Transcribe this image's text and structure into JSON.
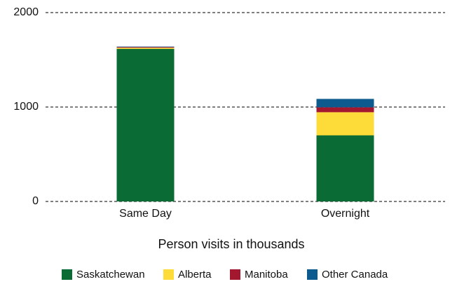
{
  "chart_data": {
    "type": "stacked_bar",
    "xlabel": "Person visits in thousands",
    "categories": [
      "Same Day",
      "Overnight"
    ],
    "series": [
      {
        "name": "Saskatchewan",
        "color": "#0a6b35",
        "values": [
          1615,
          700
        ]
      },
      {
        "name": "Alberta",
        "color": "#fddc3a",
        "values": [
          12,
          245
        ]
      },
      {
        "name": "Manitoba",
        "color": "#a3172f",
        "values": [
          8,
          52
        ]
      },
      {
        "name": "Other Canada",
        "color": "#0c5a8e",
        "values": [
          5,
          89
        ]
      }
    ],
    "ylim": [
      0,
      2000
    ],
    "yticks": [
      0,
      1000,
      2000
    ],
    "grid": true,
    "legend": "bottom"
  }
}
